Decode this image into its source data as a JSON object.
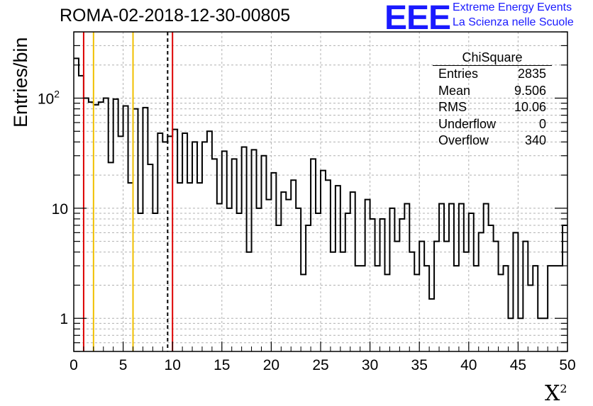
{
  "title": "ROMA-02-2018-12-30-00805",
  "logo": {
    "mark": "EEE",
    "line1": "Extreme Energy Events",
    "line2": "La Scienza nelle Scuole",
    "color": "#1a1aff"
  },
  "stats": {
    "title": "ChiSquare",
    "rows": [
      {
        "label": "Entries",
        "value": "2835"
      },
      {
        "label": "Mean",
        "value": "9.506"
      },
      {
        "label": "RMS",
        "value": "10.06"
      },
      {
        "label": "Underflow",
        "value": "0"
      },
      {
        "label": "Overflow",
        "value": "340"
      }
    ]
  },
  "chart_data": {
    "type": "bar",
    "title": "ROMA-02-2018-12-30-00805",
    "xlabel": "X",
    "xlabel_sup": "2",
    "ylabel": "Entries/bin",
    "xlim": [
      0,
      50
    ],
    "ylim": [
      0.5,
      400
    ],
    "yscale": "log",
    "grid": true,
    "bin_width": 0.5,
    "x_ticks": [
      "0",
      "5",
      "10",
      "15",
      "20",
      "25",
      "30",
      "35",
      "40",
      "45",
      "50"
    ],
    "y_ticks": [
      {
        "value": 1,
        "label": "1"
      },
      {
        "value": 10,
        "label": "10"
      },
      {
        "value": 100,
        "label": "10",
        "sup": "2"
      }
    ],
    "values": [
      230,
      160,
      100,
      92,
      87,
      92,
      100,
      26,
      98,
      45,
      85,
      17,
      80,
      9,
      82,
      25,
      9,
      48,
      40,
      45,
      52,
      17,
      48,
      17,
      40,
      17,
      40,
      50,
      28,
      11,
      33,
      10,
      28,
      9,
      36,
      4,
      34,
      10,
      30,
      12,
      21,
      7,
      14,
      12,
      18,
      10,
      2.5,
      7,
      28,
      9,
      22,
      18,
      4,
      16,
      4,
      9,
      14,
      3,
      3,
      12,
      8,
      3,
      8,
      2.5,
      10,
      5,
      8,
      11,
      4,
      2.5,
      5,
      3,
      1.5,
      5,
      11,
      5,
      11,
      3,
      11,
      4,
      9,
      3,
      6,
      11,
      7,
      5,
      2.5,
      3,
      1,
      6,
      1,
      5,
      2,
      3,
      1,
      1,
      3,
      3,
      3,
      7
    ],
    "vlines": [
      {
        "x": 1.0,
        "color": "#dd0000",
        "dash": false
      },
      {
        "x": 2.0,
        "color": "#f0c000",
        "dash": false
      },
      {
        "x": 6.0,
        "color": "#f0c000",
        "dash": false
      },
      {
        "x": 9.506,
        "color": "#000000",
        "dash": true
      },
      {
        "x": 10.0,
        "color": "#dd0000",
        "dash": false
      }
    ]
  }
}
